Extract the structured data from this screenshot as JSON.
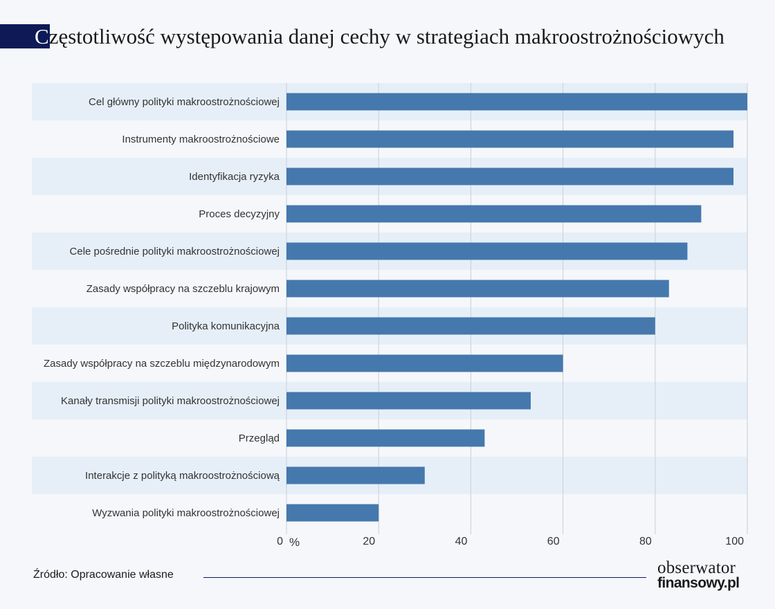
{
  "title": {
    "first_letter": "C",
    "rest": "zęstotliwość występowania danej cechy w strategiach makroostrożnościowych"
  },
  "chart_data": {
    "type": "bar",
    "orientation": "horizontal",
    "categories": [
      "Cel główny polityki makroostrożnościowej",
      "Instrumenty makroostrożnościowe",
      "Identyfikacja ryzyka",
      "Proces decyzyjny",
      "Cele pośrednie polityki makroostrożnościowej",
      "Zasady współpracy na szczeblu krajowym",
      "Polityka komunikacyjna",
      "Zasady współpracy na szczeblu międzynarodowym",
      "Kanały transmisji polityki makroostrożnościowej",
      "Przegląd",
      "Interakcje z polityką makroostrożnościową",
      "Wyzwania polityki makroostrożnościowej"
    ],
    "values": [
      100,
      97,
      97,
      90,
      87,
      83,
      80,
      60,
      53,
      43,
      30,
      20
    ],
    "xlim": [
      0,
      100
    ],
    "xticks": [
      0,
      20,
      40,
      60,
      80,
      100
    ],
    "xunit": "%",
    "grid": true,
    "bar_color": "#4578ad",
    "band_color": "#e6eff8"
  },
  "footer": {
    "source": "Źródło: Opracowanie własne",
    "logo_line1": "obserwator",
    "logo_line2": "finansowy.pl"
  }
}
